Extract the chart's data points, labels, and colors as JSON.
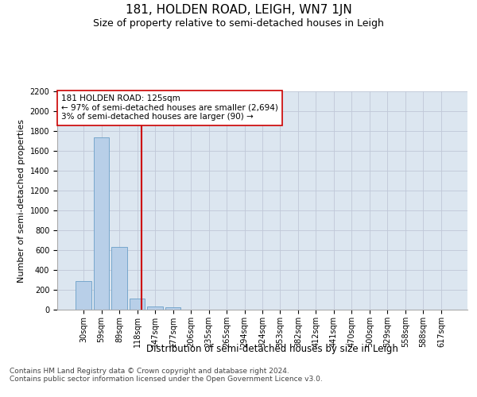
{
  "title": "181, HOLDEN ROAD, LEIGH, WN7 1JN",
  "subtitle": "Size of property relative to semi-detached houses in Leigh",
  "xlabel": "Distribution of semi-detached houses by size in Leigh",
  "ylabel": "Number of semi-detached properties",
  "bar_categories": [
    "30sqm",
    "59sqm",
    "89sqm",
    "118sqm",
    "147sqm",
    "177sqm",
    "206sqm",
    "235sqm",
    "265sqm",
    "294sqm",
    "324sqm",
    "353sqm",
    "382sqm",
    "412sqm",
    "441sqm",
    "470sqm",
    "500sqm",
    "529sqm",
    "558sqm",
    "588sqm",
    "617sqm"
  ],
  "bar_values": [
    290,
    1740,
    630,
    110,
    35,
    25,
    0,
    0,
    0,
    0,
    0,
    0,
    0,
    0,
    0,
    0,
    0,
    0,
    0,
    0,
    0
  ],
  "bar_color": "#b8cfe8",
  "bar_edge_color": "#6a9fc8",
  "vline_color": "#cc0000",
  "annotation_text": "181 HOLDEN ROAD: 125sqm\n← 97% of semi-detached houses are smaller (2,694)\n3% of semi-detached houses are larger (90) →",
  "annotation_box_color": "#ffffff",
  "annotation_box_edge_color": "#cc0000",
  "ylim": [
    0,
    2200
  ],
  "yticks": [
    0,
    200,
    400,
    600,
    800,
    1000,
    1200,
    1400,
    1600,
    1800,
    2000,
    2200
  ],
  "grid_color": "#c0c8d8",
  "background_color": "#dce6f0",
  "footer_text": "Contains HM Land Registry data © Crown copyright and database right 2024.\nContains public sector information licensed under the Open Government Licence v3.0.",
  "title_fontsize": 11,
  "subtitle_fontsize": 9,
  "annotation_fontsize": 7.5,
  "tick_fontsize": 7,
  "ylabel_fontsize": 8,
  "xlabel_fontsize": 8.5,
  "footer_fontsize": 6.5
}
